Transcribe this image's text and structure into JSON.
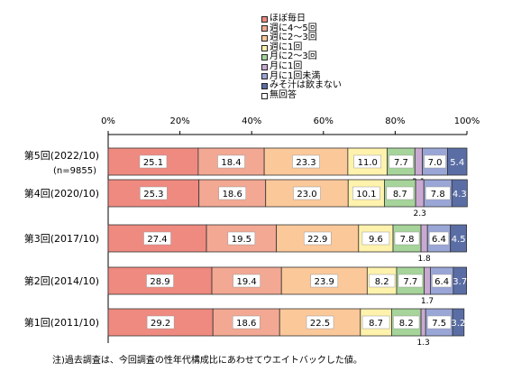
{
  "chart_data": {
    "type": "bar",
    "orientation": "horizontal",
    "stacked": true,
    "xlim": [
      0,
      100
    ],
    "xticks": [
      "0%",
      "20%",
      "40%",
      "60%",
      "80%",
      "100%"
    ],
    "categories": [
      {
        "label": "第5回(2022/10)",
        "sublabel": "(n=9855)"
      },
      {
        "label": "第4回(2020/10)",
        "sublabel": ""
      },
      {
        "label": "第3回(2017/10)",
        "sublabel": ""
      },
      {
        "label": "第2回(2014/10)",
        "sublabel": ""
      },
      {
        "label": "第1回(2011/10)",
        "sublabel": ""
      }
    ],
    "series": [
      {
        "name": "ほぼ毎日",
        "color": "#ef8a80",
        "values": [
          25.1,
          25.3,
          27.4,
          28.9,
          29.2
        ],
        "labels": [
          "25.1",
          "25.3",
          "27.4",
          "28.9",
          "29.2"
        ]
      },
      {
        "name": "週に4〜5回",
        "color": "#f2a893",
        "values": [
          18.4,
          18.6,
          19.5,
          19.4,
          18.6
        ],
        "labels": [
          "18.4",
          "18.6",
          "19.5",
          "19.4",
          "18.6"
        ]
      },
      {
        "name": "週に2〜3回",
        "color": "#fbc89a",
        "values": [
          23.3,
          23.0,
          22.9,
          23.9,
          22.5
        ],
        "labels": [
          "23.3",
          "23.0",
          "22.9",
          "23.9",
          "22.5"
        ]
      },
      {
        "name": "週に1回",
        "color": "#fff2ad",
        "values": [
          11.0,
          10.1,
          9.6,
          8.2,
          8.7
        ],
        "labels": [
          "11.0",
          "10.1",
          "9.6",
          "8.2",
          "8.7"
        ]
      },
      {
        "name": "月に2〜3回",
        "color": "#a6d49a",
        "values": [
          7.7,
          8.7,
          7.8,
          7.7,
          8.2
        ],
        "labels": [
          "7.7",
          "8.7",
          "7.8",
          "7.7",
          "8.2"
        ]
      },
      {
        "name": "月に1回",
        "color": "#c9a9d1",
        "values": [
          2.1,
          2.3,
          1.8,
          1.7,
          1.3
        ],
        "labels": [
          "2.1",
          "2.3",
          "1.8",
          "1.7",
          "1.3"
        ]
      },
      {
        "name": "月に1回未満",
        "color": "#9aa6d6",
        "values": [
          7.0,
          7.8,
          6.4,
          6.4,
          7.5
        ],
        "labels": [
          "7.0",
          "7.8",
          "6.4",
          "6.4",
          "7.5"
        ]
      },
      {
        "name": "みそ汁は飲まない",
        "color": "#5a6ea5",
        "values": [
          5.4,
          4.3,
          4.5,
          3.7,
          3.2
        ],
        "labels": [
          "5.4",
          "4.3",
          "4.5",
          "3.7",
          "3.2"
        ]
      },
      {
        "name": "無回答",
        "color": "#ffffff",
        "values": [
          0,
          0,
          0,
          0,
          0
        ],
        "labels": [
          "",
          "",
          "",
          "",
          ""
        ]
      }
    ],
    "note": "注)過去調査は、今回調査の性年代構成比にあわせてウエイトバックした値。",
    "grid": false,
    "legend_position": "top"
  }
}
